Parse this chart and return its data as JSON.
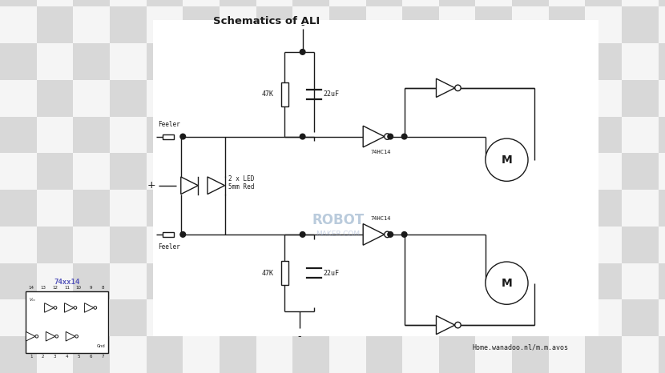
{
  "title": "Schematics of ALI",
  "line_color": "#1a1a1a",
  "text_color": "#000000",
  "blue_text_color": "#5555bb",
  "checker_light": "#d8d8d8",
  "checker_dark": "#f5f5f5",
  "fig_width": 8.3,
  "fig_height": 4.66,
  "dpi": 100,
  "website_text": "Home.wanadoo.nl/m.m.avos",
  "ic_label": "74xx14",
  "res_label_top": "47K",
  "cap_label_top": "22uF",
  "res_label_bot": "47K",
  "cap_label_bot": "22uF",
  "ic_top_label": "74HC14",
  "ic_bot_label": "74HC14",
  "led_label": "2 x LED\n5mm Red",
  "feeler_top": "Feeler",
  "feeler_bot": "Feeler",
  "motor_label": "M",
  "plus_label": "+",
  "minus_top": "-",
  "minus_bot": "-",
  "watermark1": "ROBOT",
  "watermark2": "MAKER.COM"
}
